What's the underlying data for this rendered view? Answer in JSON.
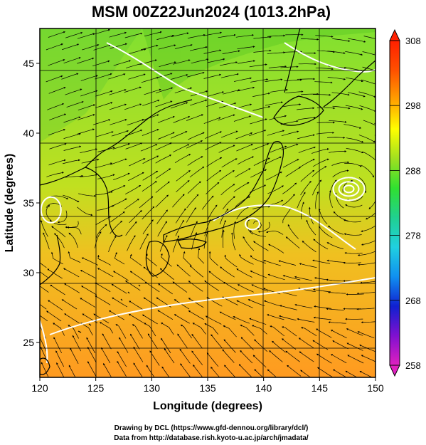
{
  "figure": {
    "title": "MSM 00Z22Jun2024 (1013.2hPa)",
    "xlabel": "Longitude (degrees)",
    "ylabel": "Latitude  (degrees)",
    "credit_line1": "Drawing by DCL (https://www.gfd-dennou.org/library/dcl/)",
    "credit_line2": "Data from http://database.rish.kyoto-u.ac.jp/arch/jmadata/"
  },
  "chart_data": {
    "type": "heatmap",
    "variable_unit": "",
    "x_range": [
      120,
      150
    ],
    "y_range": [
      22.5,
      47.5
    ],
    "x_ticks": [
      "120",
      "125",
      "130",
      "135",
      "140",
      "145",
      "150"
    ],
    "y_ticks": [
      "25",
      "30",
      "35",
      "40",
      "45"
    ],
    "colorbar": {
      "min": 258,
      "max": 308,
      "ticks": [
        "258",
        "268",
        "278",
        "288",
        "298",
        "308"
      ],
      "colors": [
        "#e020c0",
        "#8010d0",
        "#1020d0",
        "#1090f0",
        "#20d0e0",
        "#20d090",
        "#30e030",
        "#a0e020",
        "#ffff00",
        "#ffa000",
        "#ff5000",
        "#ff2000"
      ]
    },
    "field_colors": {
      "north": "#80e030",
      "middle": "#c0e020",
      "south": "#ff9a20"
    },
    "overlays": [
      "streamlines",
      "isobars",
      "coastlines",
      "grid"
    ],
    "cyclones": [
      {
        "lon": 148,
        "lat": 36
      },
      {
        "lon": 139,
        "lat": 33.5
      },
      {
        "lon": 121,
        "lat": 34.5
      }
    ]
  }
}
